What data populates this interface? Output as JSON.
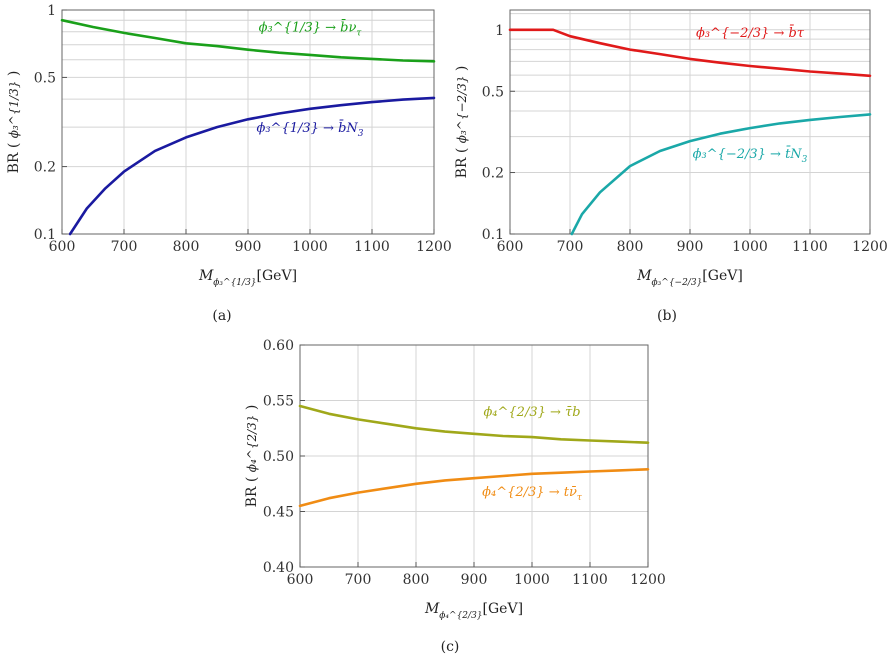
{
  "chart_data": [
    {
      "type": "line",
      "panel": "(a)",
      "caption": "(a)",
      "y_scale": "log",
      "xlim": [
        600,
        1200
      ],
      "ylim": [
        0.1,
        1
      ],
      "xticks": [
        600,
        700,
        800,
        900,
        1000,
        1100,
        1200
      ],
      "xtick_labels": [
        "600",
        "700",
        "800",
        "900",
        "1000",
        "1100",
        "1200"
      ],
      "yticks": [
        0.1,
        0.2,
        0.5,
        1
      ],
      "ytick_labels": [
        "0.1",
        "0.2",
        "0.5",
        "1"
      ],
      "xlabel": {
        "main": "M",
        "sub": "ϕ₃^{1/3}",
        "unit": "[GeV]"
      },
      "ylabel": {
        "main": "BR (",
        "sym": "ϕ₃^{1/3}",
        "close": ")"
      },
      "grid": true,
      "series": [
        {
          "name": "ϕ₃^{1/3} → b̄ν_τ",
          "label_sym": "ϕ₃^{1/3}",
          "label_tail": "→ b̄ν",
          "label_tail_sub": "τ",
          "color": "#1aa01a",
          "label_at": [
            1000,
            0.8
          ],
          "x": [
            600,
            650,
            700,
            750,
            800,
            850,
            900,
            950,
            1000,
            1050,
            1100,
            1150,
            1200
          ],
          "y": [
            0.9,
            0.84,
            0.79,
            0.75,
            0.71,
            0.69,
            0.665,
            0.645,
            0.63,
            0.615,
            0.605,
            0.595,
            0.59
          ]
        },
        {
          "name": "ϕ₃^{1/3} → b̄N₃",
          "label_sym": "ϕ₃^{1/3}",
          "label_tail": "→ b̄N",
          "label_tail_sub": "3",
          "color": "#1a1aa0",
          "label_at": [
            1000,
            0.285
          ],
          "x": [
            613,
            640,
            670,
            700,
            750,
            800,
            850,
            900,
            950,
            1000,
            1050,
            1100,
            1150,
            1200
          ],
          "y": [
            0.1,
            0.13,
            0.16,
            0.19,
            0.235,
            0.27,
            0.3,
            0.325,
            0.345,
            0.362,
            0.376,
            0.388,
            0.398,
            0.405
          ]
        }
      ]
    },
    {
      "type": "line",
      "panel": "(b)",
      "caption": "(b)",
      "y_scale": "log",
      "xlim": [
        600,
        1200
      ],
      "ylim": [
        0.1,
        1.25
      ],
      "xticks": [
        600,
        700,
        800,
        900,
        1000,
        1100,
        1200
      ],
      "xtick_labels": [
        "600",
        "700",
        "800",
        "900",
        "1000",
        "1100",
        "1200"
      ],
      "yticks": [
        0.1,
        0.2,
        0.5,
        1
      ],
      "ytick_labels": [
        "0.1",
        "0.2",
        "0.5",
        "1"
      ],
      "xlabel": {
        "main": "M",
        "sub": "ϕ₃^{−2/3}",
        "unit": "[GeV]"
      },
      "ylabel": {
        "main": "BR (",
        "sym": "ϕ₃^{−2/3}",
        "close": ")"
      },
      "grid": true,
      "series": [
        {
          "name": "ϕ₃^{−2/3} → b̄τ",
          "label_sym": "ϕ₃^{−2/3}",
          "label_tail": "→ b̄τ",
          "label_tail_sub": "",
          "color": "#e01a1a",
          "label_at": [
            1000,
            0.92
          ],
          "x": [
            600,
            650,
            672,
            700,
            750,
            800,
            850,
            900,
            950,
            1000,
            1050,
            1100,
            1150,
            1200
          ],
          "y": [
            1.0,
            1.0,
            1.0,
            0.93,
            0.86,
            0.8,
            0.76,
            0.72,
            0.69,
            0.665,
            0.645,
            0.625,
            0.61,
            0.595
          ]
        },
        {
          "name": "ϕ₃^{−2/3} → t̄N₃",
          "label_sym": "ϕ₃^{−2/3}",
          "label_tail": "→ t̄N",
          "label_tail_sub": "3",
          "color": "#1aa8a8",
          "label_at": [
            1000,
            0.235
          ],
          "x": [
            703,
            720,
            750,
            800,
            850,
            900,
            950,
            1000,
            1050,
            1100,
            1150,
            1200
          ],
          "y": [
            0.1,
            0.125,
            0.16,
            0.215,
            0.255,
            0.285,
            0.31,
            0.33,
            0.348,
            0.362,
            0.374,
            0.385
          ]
        }
      ]
    },
    {
      "type": "line",
      "panel": "(c)",
      "caption": "(c)",
      "y_scale": "linear",
      "xlim": [
        600,
        1200
      ],
      "ylim": [
        0.4,
        0.6
      ],
      "xticks": [
        600,
        700,
        800,
        900,
        1000,
        1100,
        1200
      ],
      "xtick_labels": [
        "600",
        "700",
        "800",
        "900",
        "1000",
        "1100",
        "1200"
      ],
      "yticks": [
        0.4,
        0.45,
        0.5,
        0.55,
        0.6
      ],
      "ytick_labels": [
        "0.40",
        "0.45",
        "0.50",
        "0.55",
        "0.60"
      ],
      "xlabel": {
        "main": "M",
        "sub": "ϕ₄^{2/3}",
        "unit": "[GeV]"
      },
      "ylabel": {
        "main": "BR (",
        "sym": "ϕ₄^{2/3}",
        "close": ")"
      },
      "grid": true,
      "series": [
        {
          "name": "ϕ₄^{2/3} → τ̄b",
          "label_sym": "ϕ₄^{2/3}",
          "label_tail": "→ τ̄b",
          "label_tail_sub": "",
          "color": "#a0a81a",
          "label_at": [
            1000,
            0.536
          ],
          "x": [
            600,
            650,
            700,
            750,
            800,
            850,
            900,
            950,
            1000,
            1050,
            1100,
            1150,
            1200
          ],
          "y": [
            0.545,
            0.538,
            0.533,
            0.529,
            0.525,
            0.522,
            0.52,
            0.518,
            0.517,
            0.515,
            0.514,
            0.513,
            0.512
          ]
        },
        {
          "name": "ϕ₄^{2/3} → tν̄_τ",
          "label_sym": "ϕ₄^{2/3}",
          "label_tail": "→ tν̄",
          "label_tail_sub": "τ",
          "color": "#f08c14",
          "label_at": [
            1000,
            0.464
          ],
          "x": [
            600,
            650,
            700,
            750,
            800,
            850,
            900,
            950,
            1000,
            1050,
            1100,
            1150,
            1200
          ],
          "y": [
            0.455,
            0.462,
            0.467,
            0.471,
            0.475,
            0.478,
            0.48,
            0.482,
            0.484,
            0.485,
            0.486,
            0.487,
            0.488
          ]
        }
      ]
    }
  ]
}
